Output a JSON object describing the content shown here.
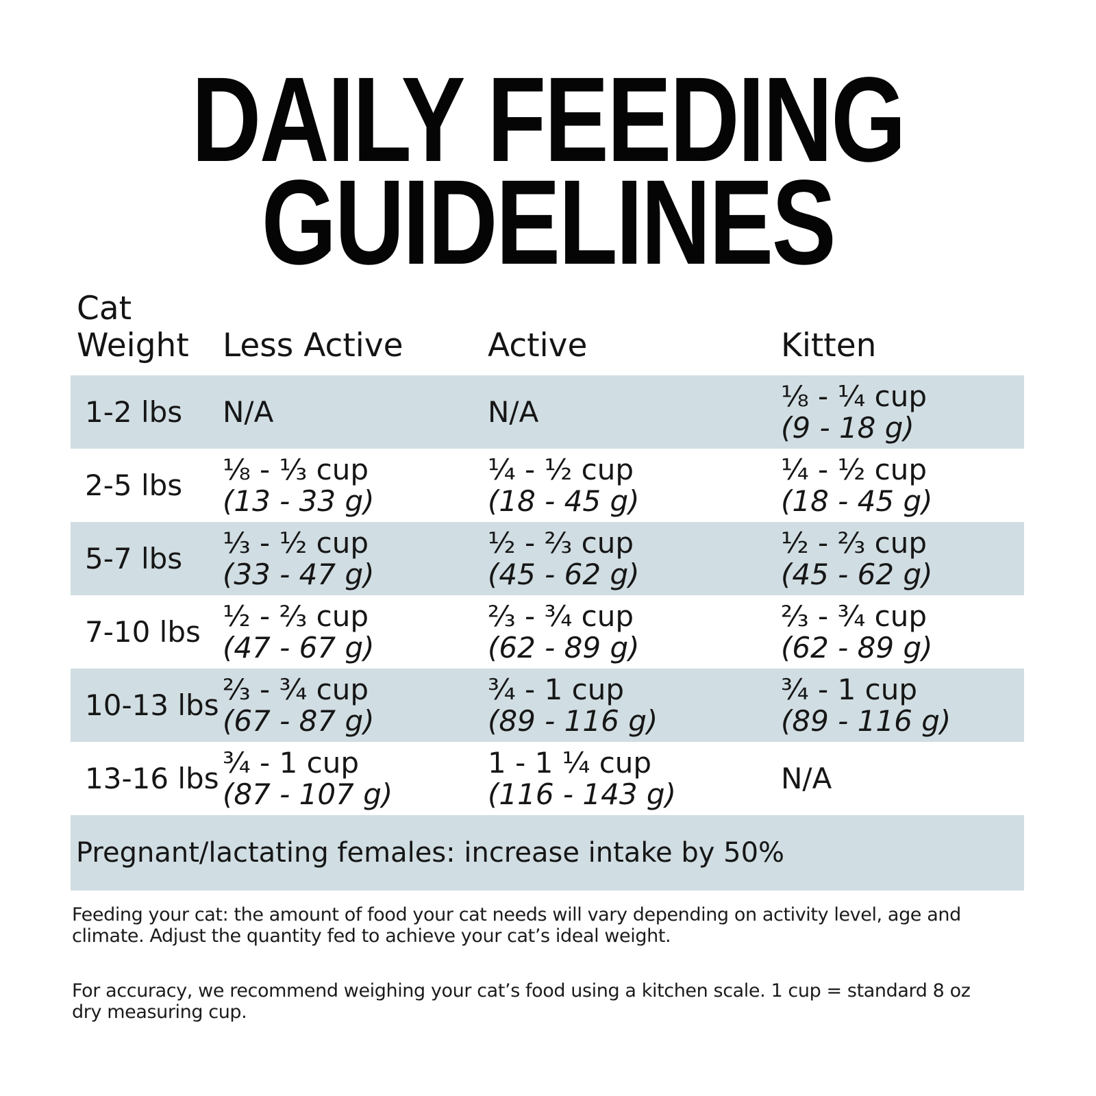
{
  "title": {
    "line1": "DAILY FEEDING",
    "line2": "GUIDELINES"
  },
  "table": {
    "header": {
      "weight_line1": "Cat",
      "weight_line2": "Weight",
      "less_active": "Less Active",
      "active": "Active",
      "kitten": "Kitten"
    },
    "rows": [
      {
        "shaded": true,
        "weight": "1-2 lbs",
        "less_active": {
          "cup": "N/A",
          "g": ""
        },
        "active": {
          "cup": "N/A",
          "g": ""
        },
        "kitten": {
          "cup": "⅛ - ¼ cup",
          "g": "(9 - 18 g)"
        }
      },
      {
        "shaded": false,
        "weight": "2-5 lbs",
        "less_active": {
          "cup": "⅛ - ⅓ cup",
          "g": "(13 - 33 g)"
        },
        "active": {
          "cup": "¼ - ½ cup",
          "g": "(18 - 45 g)"
        },
        "kitten": {
          "cup": "¼ - ½ cup",
          "g": "(18 - 45 g)"
        }
      },
      {
        "shaded": true,
        "weight": "5-7 lbs",
        "less_active": {
          "cup": "⅓ - ½ cup",
          "g": "(33 - 47 g)"
        },
        "active": {
          "cup": "½ - ⅔ cup",
          "g": "(45 - 62 g)"
        },
        "kitten": {
          "cup": "½ - ⅔ cup",
          "g": "(45 - 62 g)"
        }
      },
      {
        "shaded": false,
        "weight": "7-10 lbs",
        "less_active": {
          "cup": "½ - ⅔ cup",
          "g": "(47 - 67 g)"
        },
        "active": {
          "cup": "⅔ - ¾ cup",
          "g": "(62 - 89 g)"
        },
        "kitten": {
          "cup": "⅔ - ¾ cup",
          "g": "(62 - 89 g)"
        }
      },
      {
        "shaded": true,
        "weight": "10-13 lbs",
        "less_active": {
          "cup": "⅔ - ¾ cup",
          "g": "(67 - 87 g)"
        },
        "active": {
          "cup": "¾ - 1 cup",
          "g": "(89 - 116 g)"
        },
        "kitten": {
          "cup": "¾ - 1 cup",
          "g": "(89 - 116 g)"
        }
      },
      {
        "shaded": false,
        "weight": "13-16 lbs",
        "less_active": {
          "cup": "¾ - 1 cup",
          "g": "(87 - 107 g)"
        },
        "active": {
          "cup": "1 - 1 ¼ cup",
          "g": "(116 - 143 g)"
        },
        "kitten": {
          "cup": "N/A",
          "g": ""
        }
      }
    ],
    "banner": "Pregnant/lactating females: increase intake by 50%"
  },
  "notes": {
    "para1_line1": "Feeding your cat: the amount of food your cat needs will vary depending on activity level, age and",
    "para1_line2": "climate. Adjust the quantity fed to achieve your cat’s ideal weight.",
    "para2_line1": "For accuracy, we recommend weighing your cat’s food using a kitchen scale. 1 cup = standard 8 oz",
    "para2_line2": "dry measuring cup."
  },
  "colors": {
    "row_shade": "#d0dde2",
    "title_text": "#050505",
    "body_text": "#161616"
  }
}
